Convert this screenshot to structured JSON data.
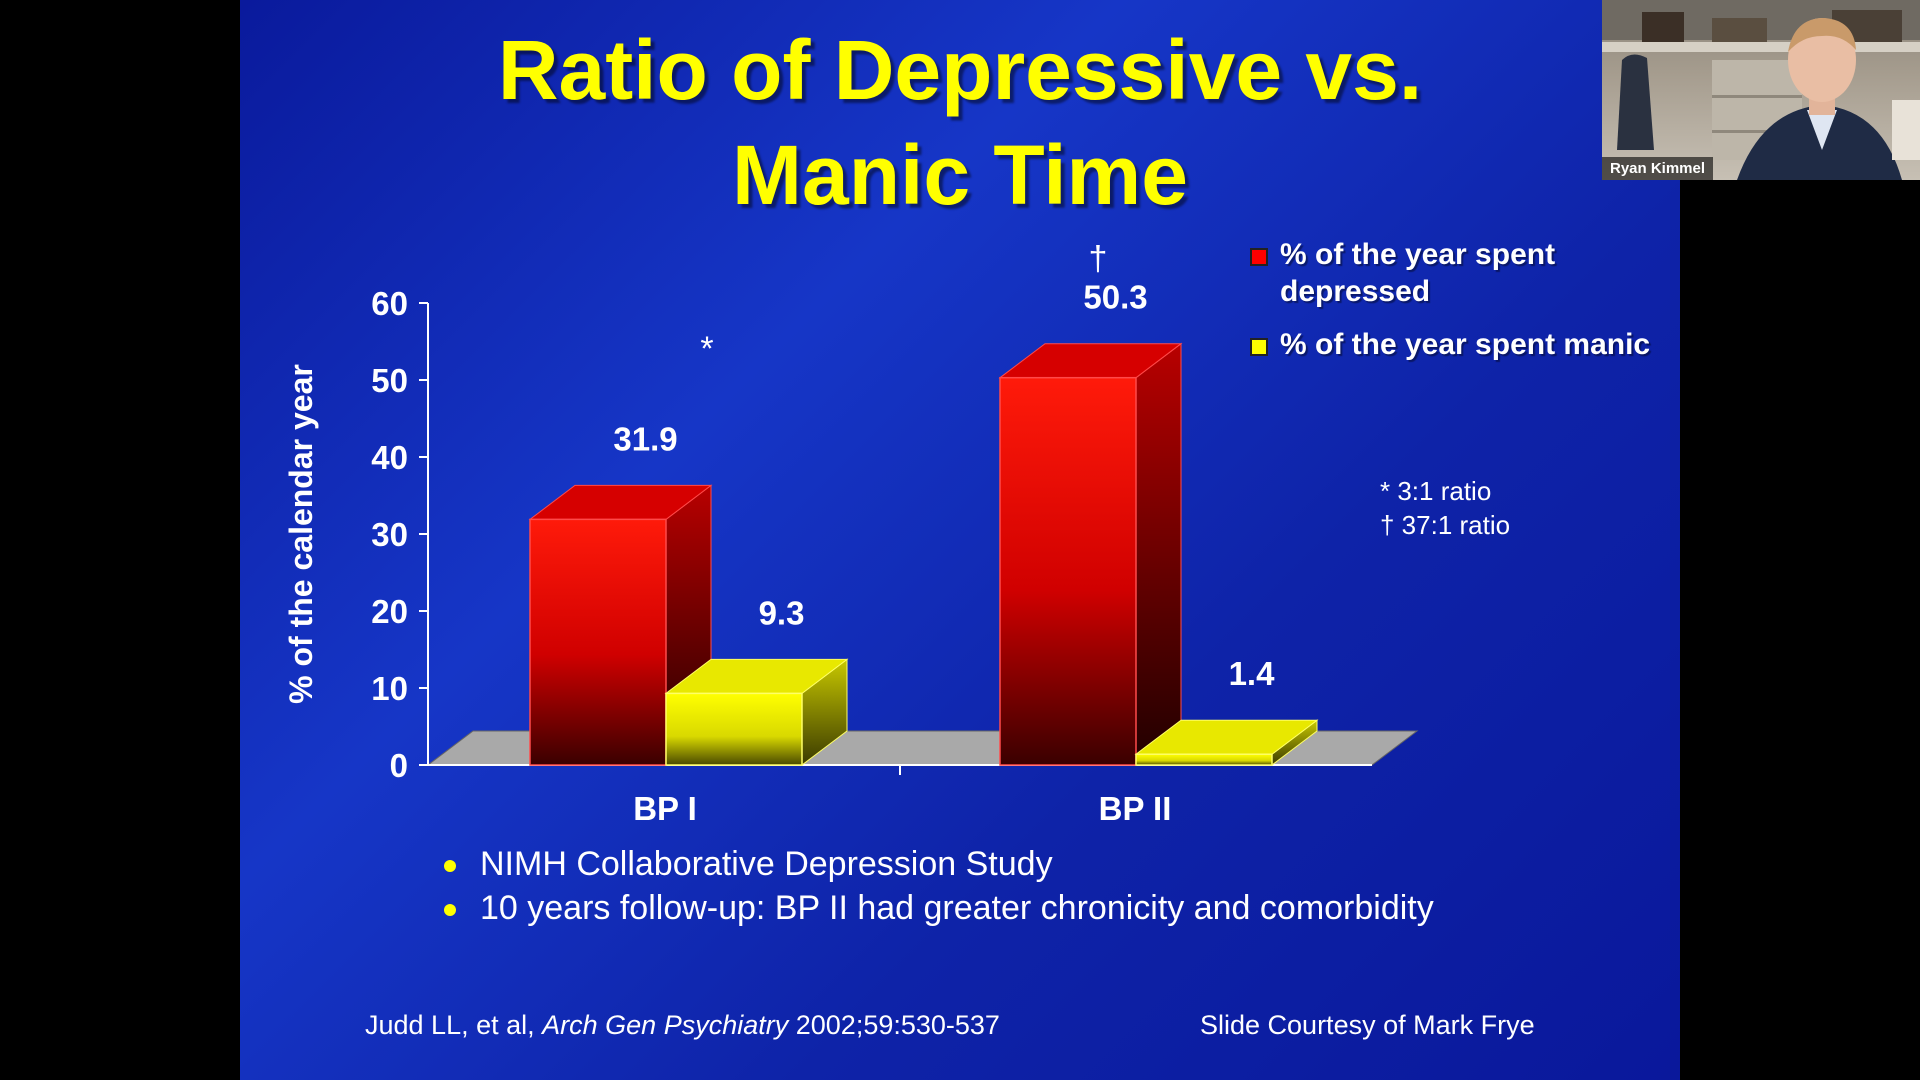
{
  "slide": {
    "title_line1": "Ratio of Depressive vs.",
    "title_line2": "Manic Time",
    "bullets": [
      "NIMH Collaborative Depression Study",
      "10 years follow-up: BP II had greater chronicity and comorbidity"
    ],
    "citation_authors": "Judd LL, et al,",
    "citation_journal": "Arch Gen Psychiatry",
    "citation_ref": "2002;59:530-537",
    "courtesy": "Slide Courtesy of Mark Frye",
    "ratio_notes": [
      "* 3:1 ratio",
      "† 37:1 ratio"
    ],
    "group_marks": [
      "*",
      "†"
    ]
  },
  "chart_data": {
    "type": "bar",
    "categories": [
      "BP I",
      "BP II"
    ],
    "series": [
      {
        "name": "% of the year spent depressed",
        "values": [
          31.9,
          50.3
        ],
        "color": "#ff0000"
      },
      {
        "name": "% of the year spent manic",
        "values": [
          9.3,
          1.4
        ],
        "color": "#ffff00"
      }
    ],
    "data_labels": [
      "31.9",
      "50.3",
      "9.3",
      "1.4"
    ],
    "ylabel": "% of the calendar year",
    "ylim": [
      0,
      60
    ],
    "yticks": [
      0,
      10,
      20,
      30,
      40,
      50,
      60
    ],
    "legend_position": "top-right",
    "style": "3d"
  },
  "webcam": {
    "participant_name": "Ryan Kimmel"
  },
  "colors": {
    "slide_background": "#1130b8",
    "title": "#ffff00",
    "depressed": "#ff0000",
    "manic": "#ffff00",
    "floor": "#a9a9a9"
  }
}
